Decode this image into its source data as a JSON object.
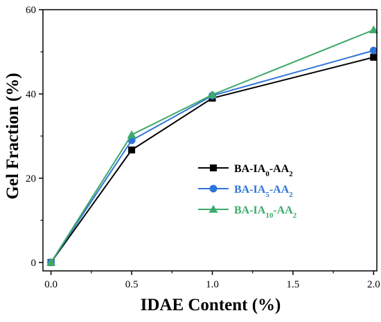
{
  "chart_data": {
    "type": "line",
    "xlabel": "IDAE Content (%)",
    "ylabel": "Gel Fraction (%)",
    "x": [
      0.0,
      0.5,
      1.0,
      2.0
    ],
    "xlim": [
      -0.05,
      2.02
    ],
    "ylim": [
      -2,
      60
    ],
    "xticks": [
      "0.0",
      "0.5",
      "1.0",
      "1.5",
      "2.0"
    ],
    "xtick_values": [
      0.0,
      0.5,
      1.0,
      1.5,
      2.0
    ],
    "yticks": [
      "0",
      "20",
      "40",
      "60"
    ],
    "ytick_values": [
      0,
      20,
      40,
      60
    ],
    "grid": false,
    "legend_position": "center-right",
    "series": [
      {
        "name_main": "BA-IA",
        "name_sub1": "0",
        "name_mid": "-AA",
        "name_sub2": "2",
        "color": "#000000",
        "marker": "square",
        "values": [
          0,
          26.7,
          39.0,
          48.7
        ]
      },
      {
        "name_main": "BA-IA",
        "name_sub1": "5",
        "name_mid": "-AA",
        "name_sub2": "2",
        "color": "#2f74d8",
        "marker": "circle",
        "values": [
          0,
          29.0,
          39.6,
          50.3
        ]
      },
      {
        "name_main": "BA-IA",
        "name_sub1": "10",
        "name_mid": "-AA",
        "name_sub2": "2",
        "color": "#3daa6a",
        "marker": "triangle",
        "values": [
          0,
          30.3,
          39.8,
          55.2
        ]
      }
    ]
  }
}
